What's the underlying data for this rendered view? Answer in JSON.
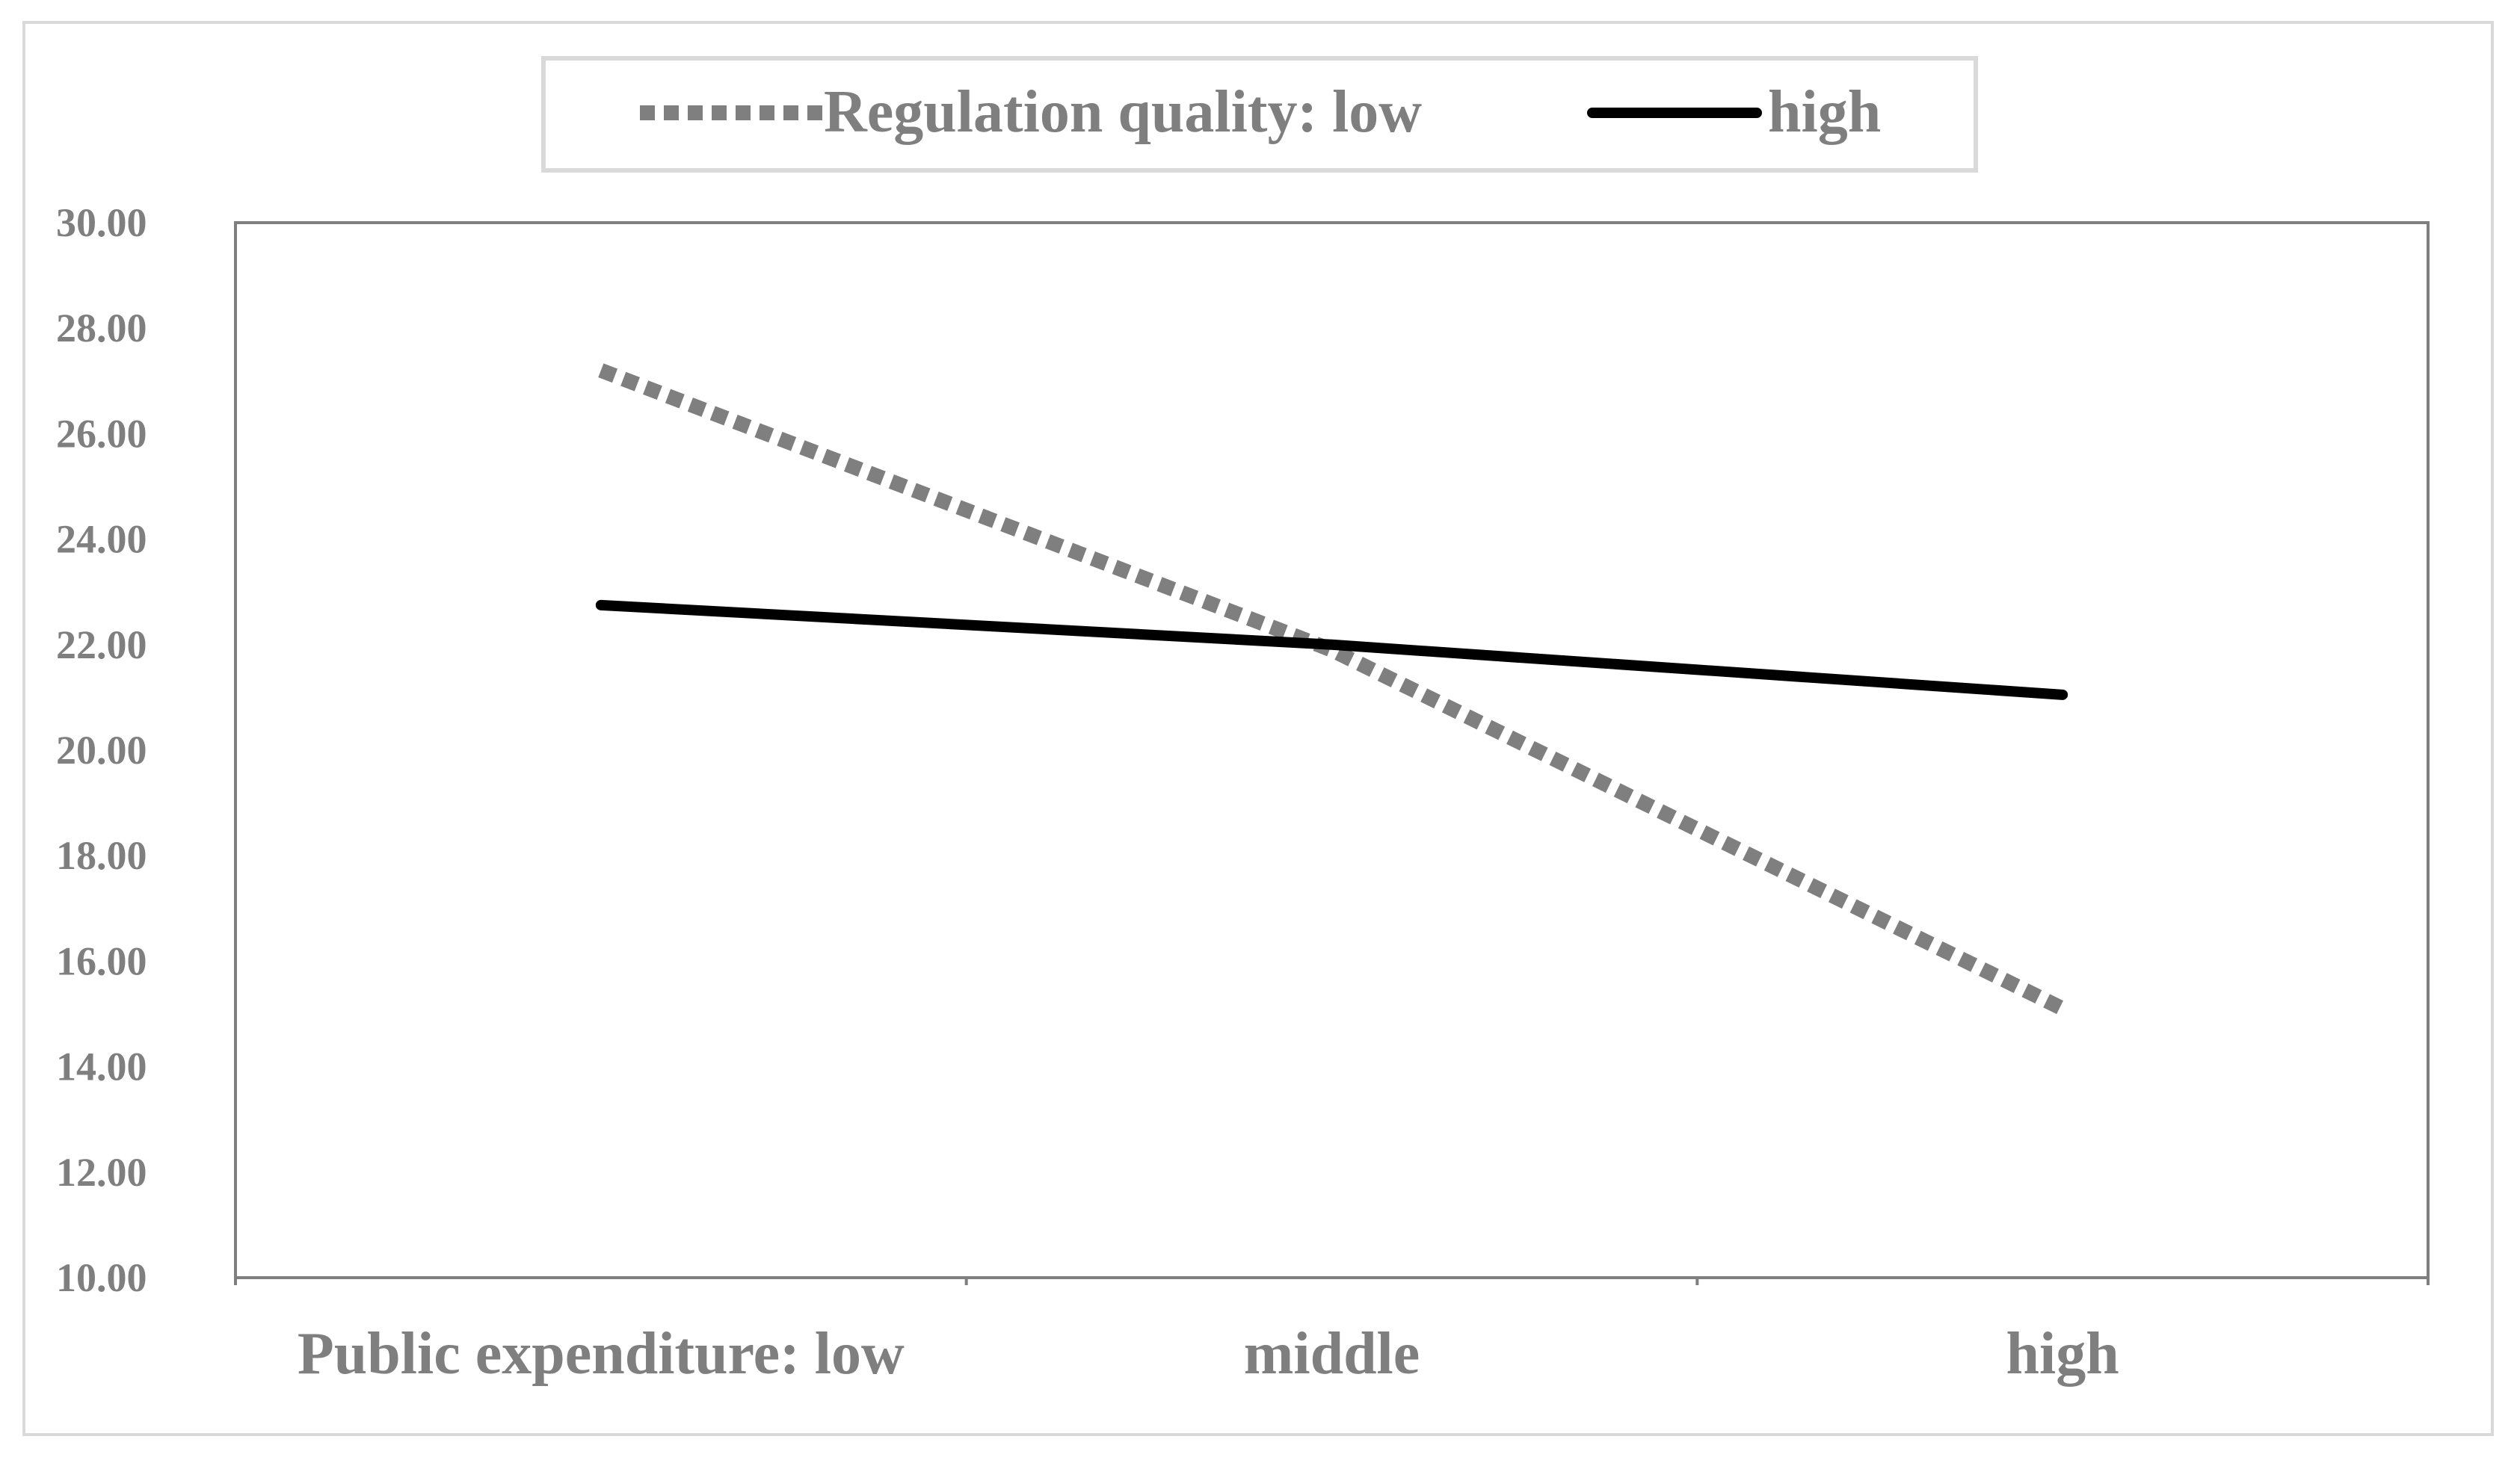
{
  "chart_data": {
    "type": "line",
    "categories": [
      "Public expenditure: low",
      "middle",
      "high"
    ],
    "series": [
      {
        "name": "Regulation quality: low",
        "values": [
          27.2,
          21.9,
          15.1
        ],
        "color": "#7f7f7f",
        "style": "dotted"
      },
      {
        "name": "high",
        "values": [
          22.75,
          22.0,
          21.05
        ],
        "color": "#000000",
        "style": "solid"
      }
    ],
    "ylim": [
      10,
      30
    ],
    "yticks": [
      "10.00",
      "12.00",
      "14.00",
      "16.00",
      "18.00",
      "20.00",
      "22.00",
      "24.00",
      "26.00",
      "28.00",
      "30.00"
    ],
    "legend_position": "top-center",
    "grid": false
  }
}
